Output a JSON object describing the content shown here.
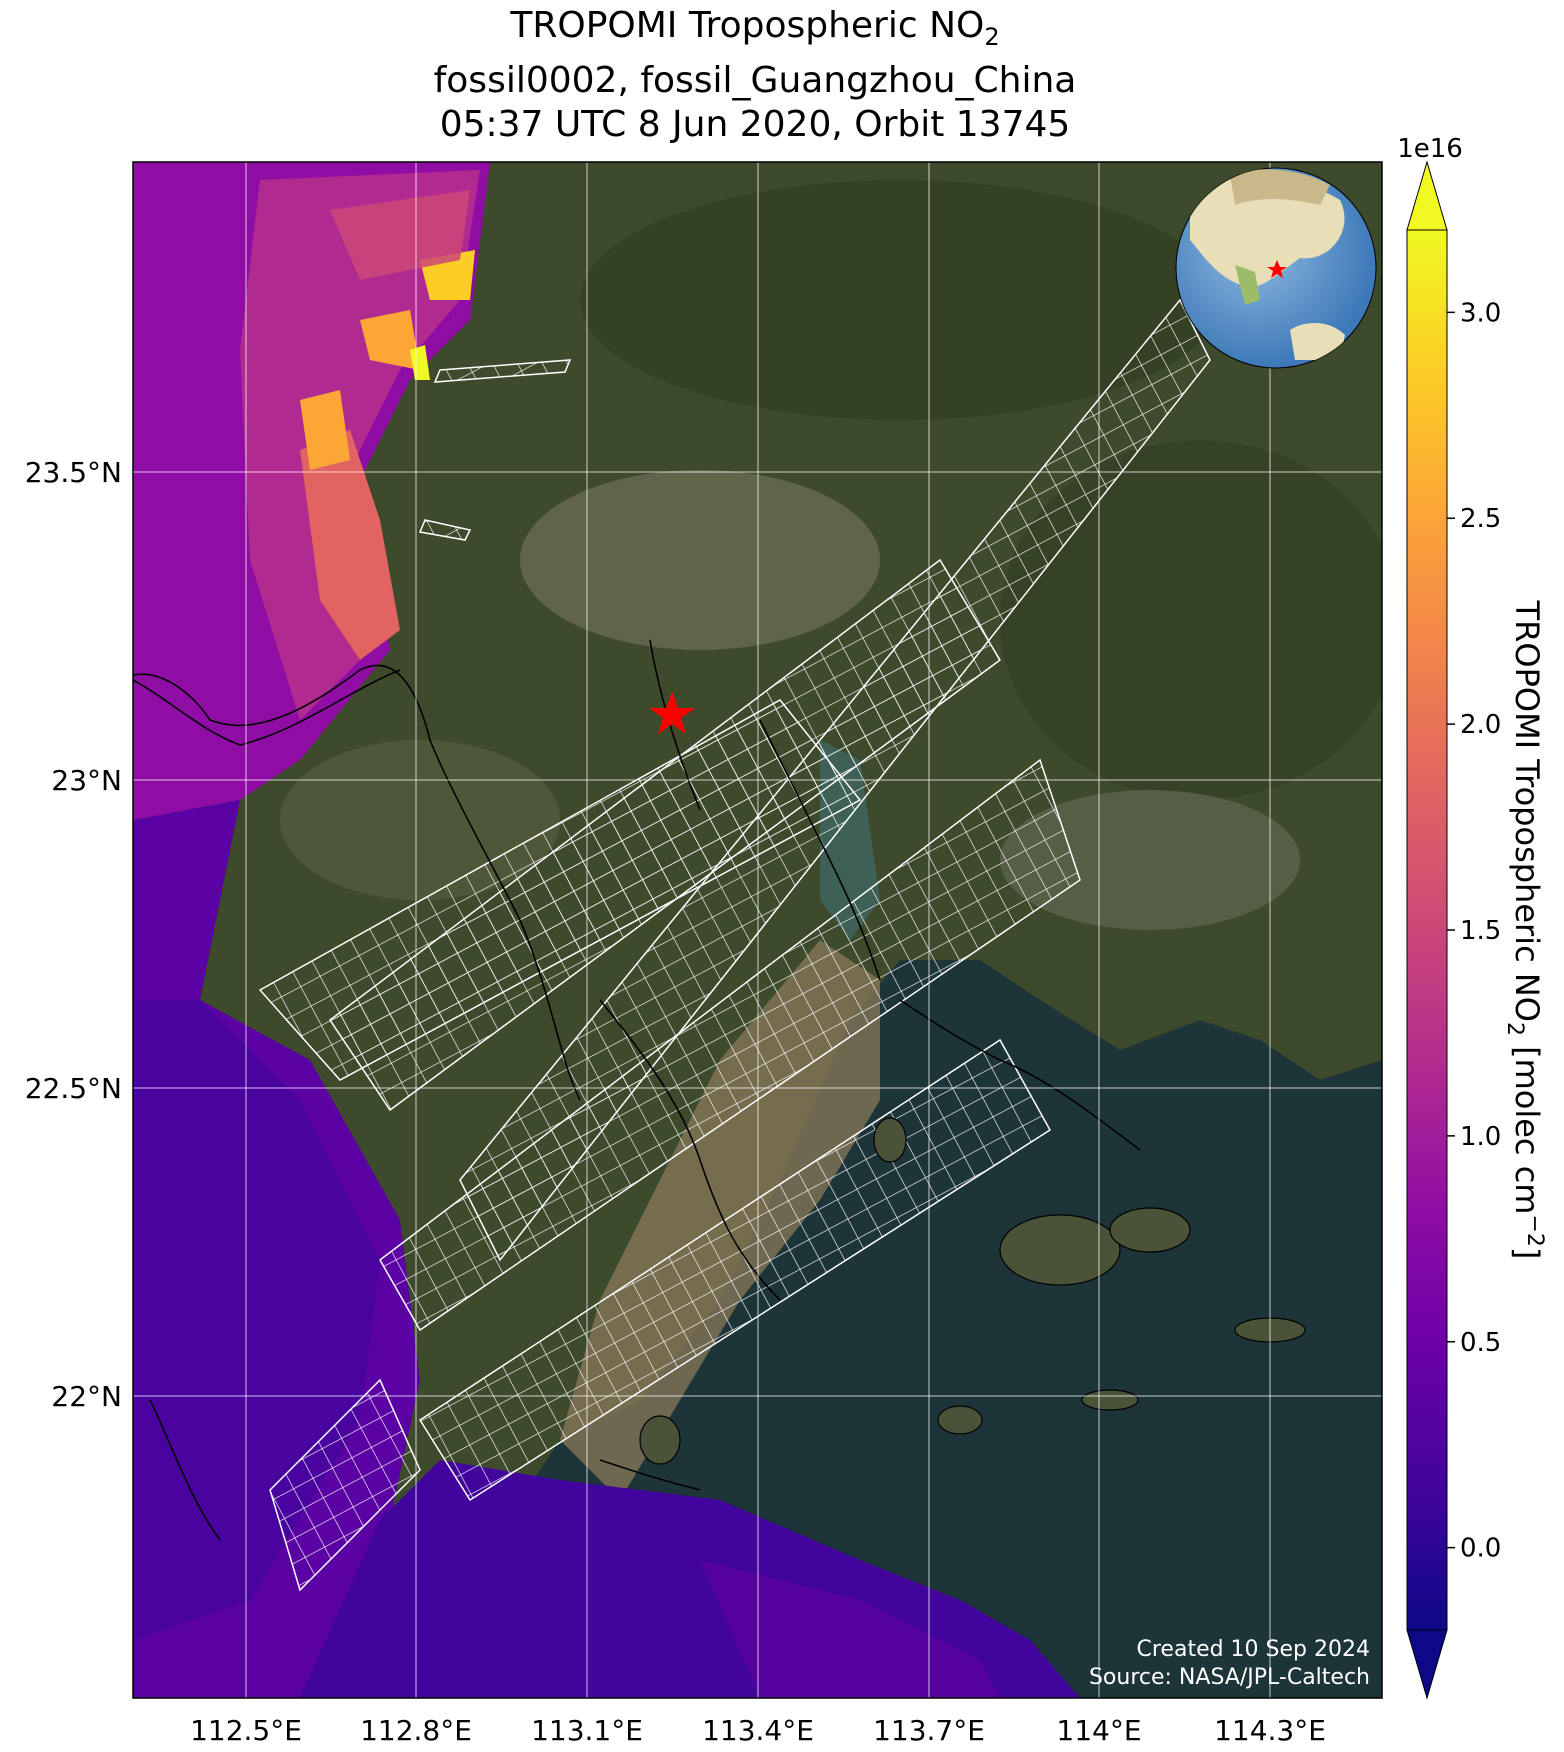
{
  "title": {
    "line1_main": "TROPOMI Tropospheric NO",
    "line1_sub": "2",
    "line2": "fossil0002, fossil_Guangzhou_China",
    "line3": "05:37 UTC 8 Jun 2020, Orbit 13745"
  },
  "map": {
    "lon_ticks": [
      "112.5°E",
      "112.8°E",
      "113.1°E",
      "113.4°E",
      "113.7°E",
      "114°E",
      "114.3°E"
    ],
    "lat_ticks": [
      "23.5°N",
      "23°N",
      "22.5°N",
      "22°N"
    ],
    "target_marker": "red-star",
    "credit_line1": "Created 10 Sep 2024",
    "credit_line2": "Source: NASA/JPL-Caltech"
  },
  "colorbar": {
    "exponent": "1e16",
    "ticks": [
      "3.0",
      "2.5",
      "2.0",
      "1.5",
      "1.0",
      "0.5",
      "0.0"
    ],
    "label_main": "TROPOMI Tropospheric NO",
    "label_sub": "2",
    "label_units": " [molec cm",
    "label_exp": "−2",
    "label_end": "]",
    "colormap": "plasma",
    "range": [
      -0.2,
      3.2
    ]
  },
  "colors": {
    "land": "#3e4a2c",
    "sea": "#1d3438",
    "grid": "#ffffff",
    "target_star": "#ff0000"
  }
}
